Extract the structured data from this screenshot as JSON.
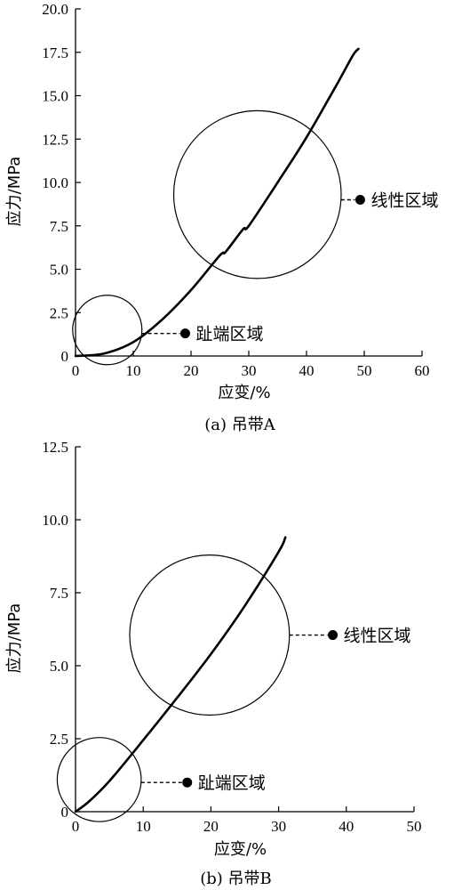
{
  "chart_data": [
    {
      "type": "line",
      "caption": "(a) 吊带A",
      "xlabel": "应变/%",
      "ylabel": "应力/MPa",
      "xlim": [
        0,
        60
      ],
      "ylim": [
        0,
        20
      ],
      "xticks": [
        "0",
        "10",
        "20",
        "30",
        "40",
        "50",
        "60"
      ],
      "yticks": [
        "0",
        "2.5",
        "5.0",
        "7.5",
        "10.0",
        "12.5",
        "15.0",
        "17.5",
        "20.0"
      ],
      "series": [
        {
          "x": [
            0,
            5,
            10,
            15,
            20,
            25,
            26,
            29,
            30,
            35,
            40,
            45,
            48,
            49
          ],
          "y": [
            0,
            0.15,
            0.8,
            2.1,
            3.8,
            5.8,
            6.0,
            7.3,
            7.5,
            10.0,
            12.6,
            15.5,
            17.3,
            17.7
          ]
        }
      ],
      "regions": [
        {
          "label": "趾端区域",
          "center": [
            5.5,
            1.5
          ],
          "radius": 6,
          "marker": [
            19,
            1.3
          ]
        },
        {
          "label": "线性区域",
          "center": [
            31.5,
            9.3
          ],
          "radius": 14.5,
          "marker": [
            49.3,
            9.0
          ]
        }
      ]
    },
    {
      "type": "line",
      "caption": "(b) 吊带B",
      "xlabel": "应变/%",
      "ylabel": "应力/MPa",
      "xlim": [
        0,
        50
      ],
      "ylim": [
        0,
        12.5
      ],
      "xticks": [
        "0",
        "10",
        "20",
        "30",
        "40",
        "50"
      ],
      "yticks": [
        "0",
        "2.5",
        "5.0",
        "7.5",
        "10.0",
        "12.5"
      ],
      "series": [
        {
          "x": [
            0,
            2,
            5,
            10,
            15,
            20,
            25,
            30,
            31
          ],
          "y": [
            0,
            0.35,
            1.05,
            2.45,
            3.9,
            5.4,
            7.05,
            8.9,
            9.4
          ]
        }
      ],
      "regions": [
        {
          "label": "趾端区域",
          "center": [
            3.5,
            1.1
          ],
          "radius": 6.2,
          "marker": [
            16.5,
            1.0
          ]
        },
        {
          "label": "线性区域",
          "center": [
            19.8,
            6.05
          ],
          "radius": 11.8,
          "marker": [
            38,
            6.05
          ]
        }
      ]
    }
  ]
}
